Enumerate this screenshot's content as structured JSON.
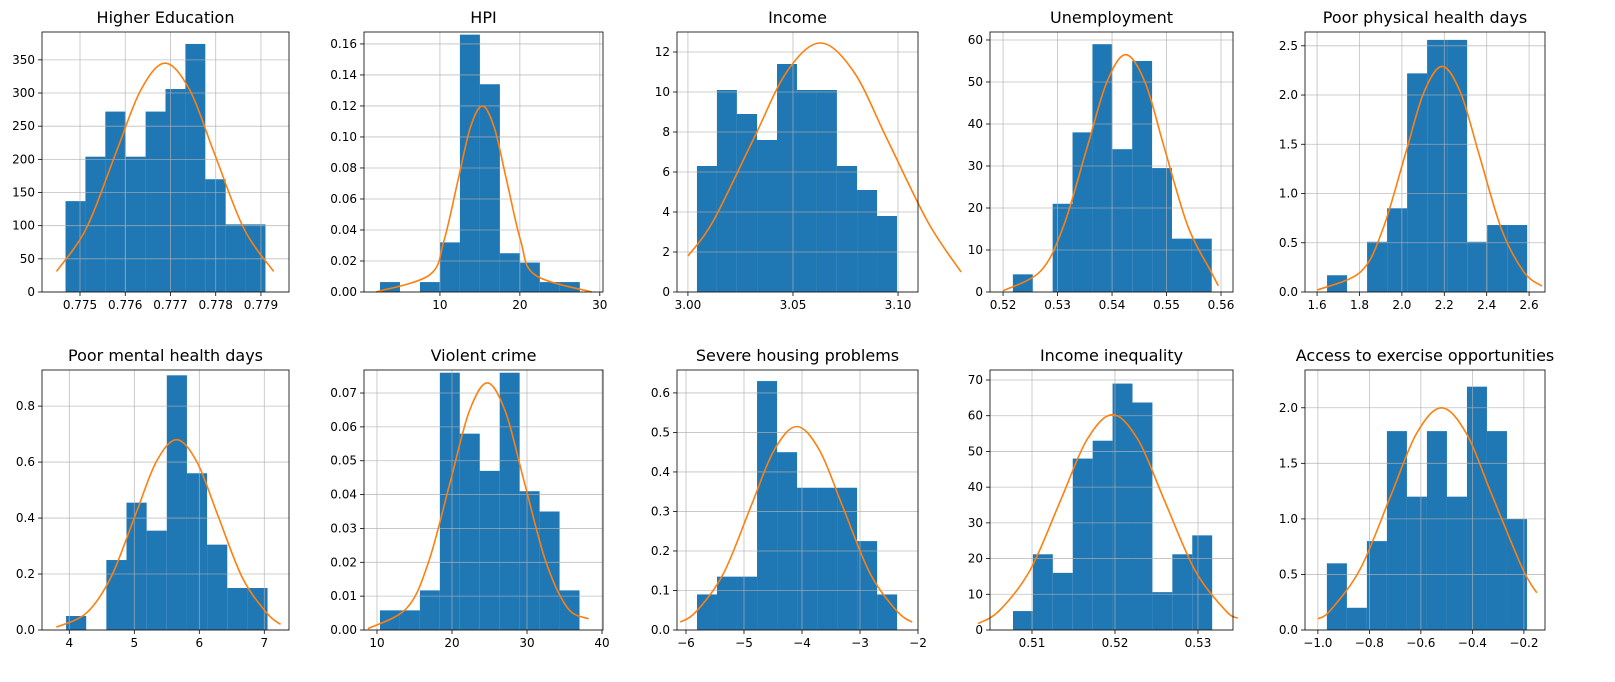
{
  "chart_data": [
    {
      "type": "histogram",
      "title": "Higher Education",
      "color": "#1f77b4",
      "grid": true,
      "bins": [
        0.77468,
        0.77512,
        0.77556,
        0.77601,
        0.77645,
        0.77689,
        0.77733,
        0.77777,
        0.77822,
        0.77866,
        0.7791
      ],
      "counts": [
        137,
        204,
        272,
        204,
        272,
        306,
        374,
        170,
        102,
        102
      ],
      "curve": {
        "color": "#ff7f0e",
        "x": [
          0.77448,
          0.77514,
          0.77579,
          0.77634,
          0.77688,
          0.77743,
          0.77797,
          0.77862,
          0.77928
        ],
        "values": [
          31,
          96,
          209,
          304,
          345,
          304,
          209,
          96,
          31
        ]
      },
      "xlim": [
        0.77416,
        0.77962
      ],
      "xticks": [
        0.775,
        0.776,
        0.777,
        0.778,
        0.779
      ],
      "ylim": [
        0,
        392
      ],
      "yticks": [
        0,
        50,
        100,
        150,
        200,
        250,
        300,
        350
      ]
    },
    {
      "type": "histogram",
      "title": "HPI",
      "color": "#1f77b4",
      "grid": true,
      "bins": [
        2.5,
        5,
        7.5,
        10,
        12.5,
        15,
        17.5,
        20,
        22.5,
        25,
        27.5
      ],
      "counts": [
        0.0064,
        0,
        0.0064,
        0.032,
        0.166,
        0.134,
        0.025,
        0.019,
        0.0064,
        0.0064
      ],
      "curve": {
        "color": "#ff7f0e",
        "x": [
          2,
          8.7,
          10.5,
          12.3,
          13.8,
          15.3,
          16.8,
          18.3,
          20.1,
          21.9,
          29
        ],
        "values": [
          0,
          0.011,
          0.033,
          0.073,
          0.106,
          0.12,
          0.106,
          0.073,
          0.033,
          0.011,
          0
        ]
      },
      "xlim": [
        0.5,
        30.4
      ],
      "xticks": [
        10,
        20,
        30
      ],
      "ylim": [
        0,
        0.1677
      ],
      "yticks": [
        {
          "value": 0,
          "label": "0.00"
        },
        {
          "value": 0.02,
          "label": "0.02"
        },
        {
          "value": 0.04,
          "label": "0.04"
        },
        {
          "value": 0.06,
          "label": "0.06"
        },
        {
          "value": 0.08,
          "label": "0.08"
        },
        {
          "value": 0.1,
          "label": "0.10"
        },
        {
          "value": 0.12,
          "label": "0.12"
        },
        {
          "value": 0.14,
          "label": "0.14"
        },
        {
          "value": 0.16,
          "label": "0.16"
        }
      ]
    },
    {
      "type": "histogram",
      "title": "Income",
      "color": "#1f77b4",
      "grid": true,
      "bins": [
        3.0043,
        3.0138,
        3.0233,
        3.0329,
        3.0424,
        3.0519,
        3.0614,
        3.0709,
        3.0805,
        3.09,
        3.0995
      ],
      "counts": [
        6.3,
        10.1,
        8.9,
        7.6,
        11.4,
        10.1,
        10.1,
        6.3,
        5.1,
        3.8
      ],
      "curve": {
        "color": "#ff7f0e",
        "x": [
          3.0,
          3.0118,
          3.031,
          3.047,
          3.063,
          3.079,
          3.095,
          3.1142,
          3.13
        ],
        "values": [
          1.8,
          3.5,
          7.6,
          11.0,
          12.45,
          11.0,
          7.6,
          3.5,
          1.0
        ]
      },
      "xlim": [
        2.9948,
        3.1095
      ],
      "xticks": [
        {
          "value": 3.0,
          "label": "3.00"
        },
        {
          "value": 3.05,
          "label": "3.05"
        },
        {
          "value": 3.1,
          "label": "3.10"
        }
      ],
      "ylim": [
        0,
        13
      ],
      "yticks": [
        0,
        2,
        4,
        6,
        8,
        10,
        12
      ]
    },
    {
      "type": "histogram",
      "title": "Unemployment",
      "color": "#1f77b4",
      "grid": true,
      "bins": [
        0.5218,
        0.52545,
        0.5291,
        0.53275,
        0.5364,
        0.54005,
        0.5437,
        0.54735,
        0.551,
        0.55465,
        0.5583
      ],
      "counts": [
        4.2,
        0,
        21,
        38,
        59,
        34,
        55,
        29.5,
        12.7,
        12.7
      ],
      "curve": {
        "color": "#ff7f0e",
        "x": [
          0.52,
          0.5269,
          0.5311,
          0.5354,
          0.539,
          0.5425,
          0.5461,
          0.5496,
          0.5539,
          0.5581,
          0.5595
        ],
        "values": [
          0.3,
          5.0,
          15.7,
          34.3,
          49.8,
          56.5,
          49.8,
          34.3,
          15.7,
          5.0,
          1.5
        ]
      },
      "xlim": [
        0.5176,
        0.5622
      ],
      "xticks": [
        0.52,
        0.53,
        0.54,
        0.55,
        0.56
      ],
      "ylim": [
        0,
        61.9
      ],
      "yticks": [
        0,
        10,
        20,
        30,
        40,
        50,
        60
      ]
    },
    {
      "type": "histogram",
      "title": "Poor physical health days",
      "color": "#1f77b4",
      "grid": true,
      "bins": [
        1.647,
        1.7414,
        1.8358,
        1.9302,
        2.0246,
        2.119,
        2.2134,
        2.3078,
        2.4022,
        2.4966,
        2.591
      ],
      "counts": [
        0.17,
        0,
        0.51,
        0.85,
        2.22,
        2.56,
        2.56,
        0.51,
        0.68,
        0.68
      ],
      "curve": {
        "color": "#ff7f0e",
        "x": [
          1.6,
          1.805,
          1.91,
          2.015,
          2.1025,
          2.19,
          2.2775,
          2.365,
          2.47,
          2.575,
          2.66
        ],
        "values": [
          0.02,
          0.204,
          0.637,
          1.39,
          2.02,
          2.29,
          2.02,
          1.39,
          0.637,
          0.204,
          0.06
        ]
      },
      "xlim": [
        1.543,
        2.675
      ],
      "xticks": [
        1.6,
        1.8,
        {
          "value": 2.0,
          "label": "2.0"
        },
        2.2,
        2.4,
        2.6
      ],
      "ylim": [
        0,
        2.64
      ],
      "yticks": [
        {
          "value": 0,
          "label": "0.0"
        },
        0.5,
        {
          "value": 1,
          "label": "1.0"
        },
        1.5,
        {
          "value": 2,
          "label": "2.0"
        },
        2.5
      ]
    },
    {
      "type": "histogram",
      "title": "Poor mental health days",
      "color": "#1f77b4",
      "grid": true,
      "bins": [
        3.95,
        4.26,
        4.57,
        4.88,
        5.19,
        5.5,
        5.81,
        6.12,
        6.43,
        6.74,
        7.05
      ],
      "counts": [
        0.05,
        0,
        0.25,
        0.455,
        0.355,
        0.91,
        0.56,
        0.305,
        0.15,
        0.15
      ],
      "curve": {
        "color": "#ff7f0e",
        "x": [
          3.8,
          4.264,
          4.642,
          5.02,
          5.335,
          5.65,
          5.965,
          6.28,
          6.658,
          7.036,
          7.25
        ],
        "values": [
          0.01,
          0.061,
          0.189,
          0.413,
          0.6,
          0.68,
          0.6,
          0.413,
          0.189,
          0.061,
          0.02
        ]
      },
      "xlim": [
        3.58,
        7.38
      ],
      "xticks": [
        4,
        5,
        6,
        7
      ],
      "ylim": [
        0,
        0.929
      ],
      "yticks": [
        {
          "value": 0,
          "label": "0.0"
        },
        0.2,
        0.4,
        0.6,
        0.8
      ]
    },
    {
      "type": "histogram",
      "title": "Violent crime",
      "color": "#1f77b4",
      "grid": true,
      "bins": [
        10.4,
        13.06,
        15.72,
        18.38,
        21.04,
        23.7,
        26.36,
        29.02,
        31.68,
        34.34,
        37.0
      ],
      "counts": [
        0.0058,
        0.0058,
        0.0117,
        0.076,
        0.058,
        0.047,
        0.076,
        0.041,
        0.035,
        0.0117
      ],
      "curve": {
        "color": "#ff7f0e",
        "x": [
          8.8,
          13.99,
          16.91,
          19.83,
          22.27,
          24.7,
          27.14,
          29.57,
          32.49,
          35.41,
          38.2
        ],
        "values": [
          0.0004,
          0.0065,
          0.0203,
          0.0443,
          0.0644,
          0.073,
          0.0644,
          0.0443,
          0.0203,
          0.0065,
          0.0033
        ]
      },
      "xlim": [
        8.27,
        40.13
      ],
      "xticks": [
        10,
        20,
        30,
        40
      ],
      "ylim": [
        0,
        0.0768
      ],
      "yticks": [
        {
          "value": 0,
          "label": "0.00"
        },
        0.01,
        0.02,
        0.03,
        0.04,
        0.05,
        0.06,
        0.07
      ]
    },
    {
      "type": "histogram",
      "title": "Severe housing problems",
      "color": "#1f77b4",
      "grid": true,
      "bins": [
        -5.81,
        -5.465,
        -5.12,
        -4.775,
        -4.43,
        -4.085,
        -3.74,
        -3.395,
        -3.05,
        -2.705,
        -2.36
      ],
      "counts": [
        0.09,
        0.135,
        0.135,
        0.63,
        0.45,
        0.36,
        0.36,
        0.36,
        0.225,
        0.09
      ],
      "curve": {
        "color": "#ff7f0e",
        "x": [
          -6.1,
          -5.828,
          -5.354,
          -4.88,
          -4.485,
          -4.09,
          -3.695,
          -3.3,
          -2.826,
          -2.352,
          -2.1
        ],
        "values": [
          0.02,
          0.046,
          0.143,
          0.313,
          0.454,
          0.515,
          0.454,
          0.313,
          0.143,
          0.046,
          0.02
        ]
      },
      "xlim": [
        -6.155,
        -2.0
      ],
      "xticks": [
        {
          "value": -6,
          "label": "−6"
        },
        {
          "value": -5,
          "label": "−5"
        },
        {
          "value": -4,
          "label": "−4"
        },
        {
          "value": -3,
          "label": "−3"
        },
        {
          "value": -2,
          "label": "−2"
        }
      ],
      "ylim": [
        0,
        0.658
      ],
      "yticks": [
        {
          "value": 0,
          "label": "0.0"
        },
        0.1,
        0.2,
        0.3,
        0.4,
        0.5,
        0.6
      ]
    },
    {
      "type": "histogram",
      "title": "Income inequality",
      "color": "#1f77b4",
      "grid": true,
      "bins": [
        0.50771,
        0.51011,
        0.51251,
        0.51491,
        0.51731,
        0.51971,
        0.52211,
        0.52451,
        0.52691,
        0.52931,
        0.53171
      ],
      "counts": [
        5.3,
        21.2,
        16,
        48,
        53,
        69,
        63.7,
        10.6,
        21.2,
        26.5
      ],
      "curve": {
        "color": "#ff7f0e",
        "x": [
          0.5035,
          0.50606,
          0.50978,
          0.5135,
          0.5166,
          0.5197,
          0.5228,
          0.5259,
          0.52962,
          0.53334,
          0.5348
        ],
        "values": [
          1.8,
          5.4,
          16.8,
          36.6,
          53.2,
          60.3,
          53.2,
          36.6,
          16.8,
          5.4,
          3.3
        ]
      },
      "xlim": [
        0.50494,
        0.53422
      ],
      "xticks": [
        0.51,
        0.52,
        0.53
      ],
      "ylim": [
        0,
        72.8
      ],
      "yticks": [
        0,
        10,
        20,
        30,
        40,
        50,
        60,
        70
      ]
    },
    {
      "type": "histogram",
      "title": "Access to exercise opportunities",
      "color": "#1f77b4",
      "grid": true,
      "bins": [
        -0.965,
        -0.8873,
        -0.8096,
        -0.7319,
        -0.6542,
        -0.5765,
        -0.4988,
        -0.4211,
        -0.3434,
        -0.2657,
        -0.188
      ],
      "counts": [
        0.6,
        0.2,
        0.8,
        1.79,
        1.2,
        1.79,
        1.2,
        2.19,
        1.79,
        1.0
      ],
      "curve": {
        "color": "#ff7f0e",
        "x": [
          -1.0,
          -0.951,
          -0.834,
          -0.716,
          -0.618,
          -0.52,
          -0.422,
          -0.324,
          -0.206,
          -0.15
        ],
        "values": [
          0.1,
          0.178,
          0.556,
          1.214,
          1.764,
          2.0,
          1.764,
          1.214,
          0.556,
          0.335
        ]
      },
      "xlim": [
        -1.05,
        -0.118
      ],
      "xticks": [
        {
          "value": -1.0,
          "label": "−1.0"
        },
        {
          "value": -0.8,
          "label": "−0.8"
        },
        {
          "value": -0.6,
          "label": "−0.6"
        },
        {
          "value": -0.4,
          "label": "−0.4"
        },
        {
          "value": -0.2,
          "label": "−0.2"
        }
      ],
      "ylim": [
        0,
        2.34
      ],
      "yticks": [
        {
          "value": 0,
          "label": "0.0"
        },
        0.5,
        {
          "value": 1,
          "label": "1.0"
        },
        1.5,
        {
          "value": 2,
          "label": "2.0"
        }
      ]
    }
  ]
}
